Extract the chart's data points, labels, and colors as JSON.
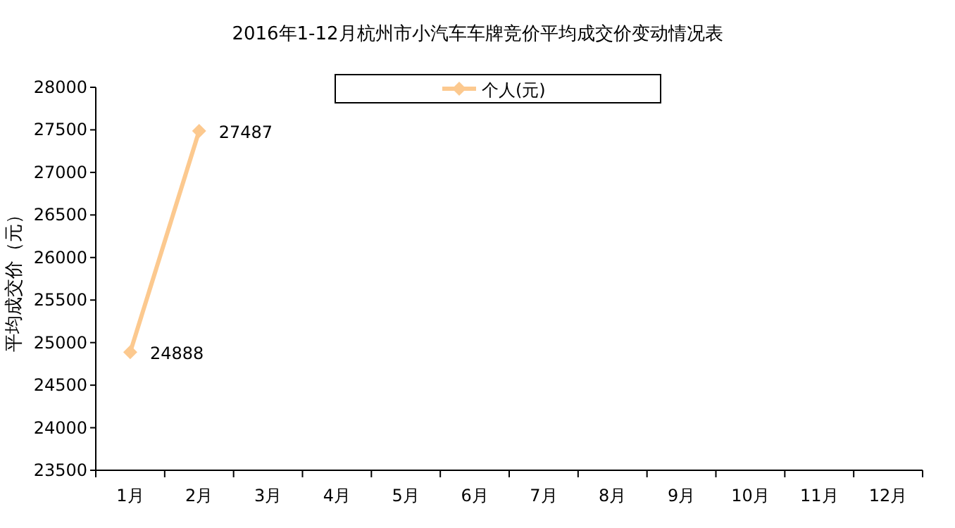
{
  "chart_data": {
    "type": "line",
    "title": "2016年1-12月杭州市小汽车车牌竞价平均成交价变动情况表",
    "ylabel": "平均成交价（元）",
    "categories": [
      "1月",
      "2月",
      "3月",
      "4月",
      "5月",
      "6月",
      "7月",
      "8月",
      "9月",
      "10月",
      "11月",
      "12月"
    ],
    "series": [
      {
        "name": "个人(元)",
        "color": "#fcc98f",
        "values": [
          24888,
          27487,
          null,
          null,
          null,
          null,
          null,
          null,
          null,
          null,
          null,
          null
        ]
      }
    ],
    "ylim": [
      23500,
      28000
    ],
    "yticks": [
      23500,
      24000,
      24500,
      25000,
      25500,
      26000,
      26500,
      27000,
      27500,
      28000
    ],
    "grid": false,
    "legend": "top",
    "marker": "diamond",
    "data_labels": true
  }
}
